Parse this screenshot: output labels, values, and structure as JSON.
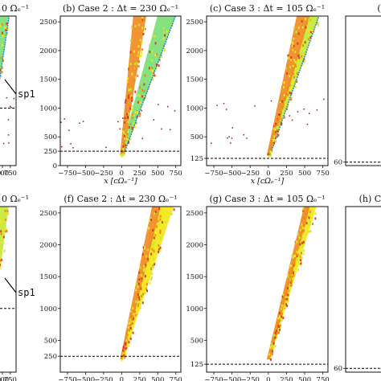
{
  "figure": {
    "colors": {
      "frame": "#111111",
      "dashed_line": "#000000",
      "yellow": "#f2e81c",
      "yellow_green": "#c8ea3a",
      "light_green": "#7fe07a",
      "cyan_green": "#54dc9c",
      "blue_edge": "#1f7fc8",
      "orange": "#f08a1e",
      "red_orange": "#e0401a",
      "dark_red": "#8b1a1a"
    },
    "annotation_label": "sp1",
    "x_axis_label": "x [cΩ_e^{-1}]"
  },
  "chart_data": [
    {
      "id": "a",
      "title": "(a) Case 1 : Δt = 460 Ω_e^{-1}",
      "title_visible": "0 Ω_e^{-1}",
      "type": "scatter",
      "row": 0,
      "col": 0,
      "xlabel": "x [cΩ_e^{-1}]",
      "xticks": [
        "0",
        "250",
        "500",
        "750"
      ],
      "yticks": [],
      "ylim": [
        0,
        2600
      ],
      "dashed_y": 1000,
      "dashed_label": "",
      "annotation": {
        "text": "sp1",
        "x": 350,
        "y": 1300
      },
      "beams": [
        {
          "x0": 0,
          "x1_at_top": 500,
          "width_at_top": 350,
          "color": "light_green"
        }
      ]
    },
    {
      "id": "b",
      "title": "(b) Case 2 : Δt = 230 Ω_e^{-1}",
      "type": "scatter",
      "row": 0,
      "col": 1,
      "xlabel": "x [cΩ_e^{-1}]",
      "xticks": [
        "−750",
        "−500",
        "−250",
        "0",
        "250",
        "500",
        "750"
      ],
      "yticks": [
        "0",
        "250",
        "500",
        "1000",
        "1500",
        "2000",
        "2500"
      ],
      "ylim": [
        0,
        2600
      ],
      "dashed_y": 250,
      "dashed_label": "250",
      "beams": [
        {
          "x0": 0,
          "x1_at_top": 620,
          "width_at_top": 250,
          "color": "light_green"
        },
        {
          "x0": 0,
          "x1_at_top": 250,
          "width_at_top": 180,
          "color": "orange"
        }
      ]
    },
    {
      "id": "c",
      "title": "(c) Case 3 : Δt = 105 Ω_e^{-1}",
      "type": "scatter",
      "row": 0,
      "col": 2,
      "xlabel": "x [cΩ_e^{-1}]",
      "xticks": [
        "−750",
        "−500",
        "−250",
        "0",
        "250",
        "500",
        "750"
      ],
      "yticks": [
        "125",
        "500",
        "1000",
        "1500",
        "2000",
        "2500"
      ],
      "ylim": [
        0,
        2600
      ],
      "dashed_y": 125,
      "dashed_label": "125",
      "beams": [
        {
          "x0": 0,
          "x1_at_top": 620,
          "width_at_top": 150,
          "color": "yellow_green"
        },
        {
          "x0": 0,
          "x1_at_top": 480,
          "width_at_top": 180,
          "color": "orange"
        }
      ]
    },
    {
      "id": "d",
      "title": "(d) Case 4",
      "title_visible": "(d",
      "type": "scatter",
      "row": 0,
      "col": 3,
      "xlabel": "",
      "xticks": [],
      "yticks": [
        "60"
      ],
      "ylim": [
        0,
        2600
      ],
      "dashed_y": 60,
      "dashed_label": "60",
      "beams": []
    },
    {
      "id": "e",
      "title": "(e) Case 1 : Δt = 460 Ω_e^{-1}",
      "title_visible": "0 Ω_e^{-1}",
      "type": "scatter",
      "row": 1,
      "col": 0,
      "xlabel": "x [cΩ_e^{-1}]",
      "xticks": [
        "0",
        "250",
        "500",
        "750"
      ],
      "yticks": [],
      "ylim": [
        0,
        2600
      ],
      "dashed_y": 1000,
      "dashed_label": "",
      "annotation": {
        "text": "sp1",
        "x": 350,
        "y": 1300
      },
      "beams": [
        {
          "x0": 0,
          "x1_at_top": 450,
          "width_at_top": 400,
          "color": "yellow_green"
        }
      ]
    },
    {
      "id": "f",
      "title": "(f) Case 2 : Δt = 230 Ω_e^{-1}",
      "type": "scatter",
      "row": 1,
      "col": 1,
      "xlabel": "x [cΩ_e^{-1}]",
      "xticks": [
        "−750",
        "−500",
        "−250",
        "0",
        "250",
        "500",
        "750"
      ],
      "yticks": [
        "250",
        "500",
        "1000",
        "1500",
        "2000",
        "2500"
      ],
      "ylim": [
        0,
        2600
      ],
      "dashed_y": 250,
      "dashed_label": "250",
      "beams": [
        {
          "x0": 0,
          "x1_at_top": 620,
          "width_at_top": 200,
          "color": "yellow"
        },
        {
          "x0": 0,
          "x1_at_top": 480,
          "width_at_top": 120,
          "color": "orange"
        }
      ]
    },
    {
      "id": "g",
      "title": "(g) Case 3 : Δt = 105 Ω_e^{-1}",
      "type": "scatter",
      "row": 1,
      "col": 2,
      "xlabel": "x [cΩ_e^{-1}]",
      "xticks": [
        "−750",
        "−500",
        "−250",
        "0",
        "250",
        "500",
        "750"
      ],
      "yticks": [
        "125",
        "500",
        "1000",
        "1500",
        "2000",
        "2500"
      ],
      "ylim": [
        0,
        2600
      ],
      "dashed_y": 125,
      "dashed_label": "125",
      "beams": [
        {
          "x0": 0,
          "x1_at_top": 600,
          "width_at_top": 120,
          "color": "yellow"
        },
        {
          "x0": 0,
          "x1_at_top": 530,
          "width_at_top": 80,
          "color": "orange"
        }
      ]
    },
    {
      "id": "h",
      "title": "(h) Case 4",
      "title_visible": "(h) Case 4",
      "type": "scatter",
      "row": 1,
      "col": 3,
      "xlabel": "",
      "xticks": [],
      "yticks": [
        "60"
      ],
      "ylim": [
        0,
        2600
      ],
      "dashed_y": 60,
      "dashed_label": "60",
      "beams": []
    }
  ]
}
